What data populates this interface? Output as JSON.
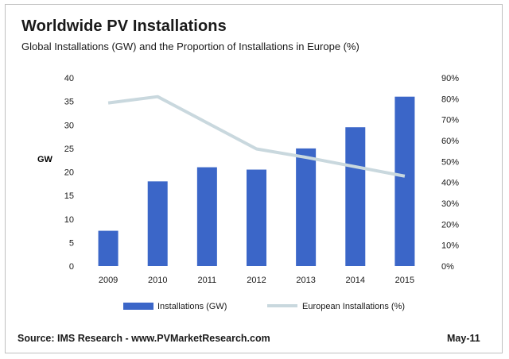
{
  "header": {
    "title": "Worldwide PV Installations",
    "subtitle": "Global Installations (GW) and the Proportion of Installations in Europe (%)"
  },
  "footer": {
    "source": "Source: IMS Research - www.PVMarketResearch.com",
    "date": "May-11"
  },
  "colors": {
    "bar": "#3B66C8",
    "line": "#C9D8DE",
    "axis_text": "#1a1a1a"
  },
  "chart_data": {
    "type": "bar",
    "title": "Worldwide PV Installations",
    "subtitle": "Global Installations (GW) and the Proportion of Installations in Europe (%)",
    "categories": [
      "2009",
      "2010",
      "2011",
      "2012",
      "2013",
      "2014",
      "2015"
    ],
    "series": [
      {
        "name": "Installations (GW)",
        "type": "bar",
        "axis": "left",
        "values": [
          7.5,
          18,
          21,
          20.5,
          25,
          29.5,
          36
        ]
      },
      {
        "name": "European Installations (%)",
        "type": "line",
        "axis": "right",
        "values": [
          78,
          81,
          null,
          56,
          52,
          null,
          43
        ]
      }
    ],
    "ylabel": "GW",
    "ylim": [
      0,
      40
    ],
    "yticks": [
      "0",
      "5",
      "10",
      "15",
      "20",
      "25",
      "30",
      "35",
      "40"
    ],
    "y2lim": [
      0,
      90
    ],
    "y2ticks": [
      "0%",
      "10%",
      "20%",
      "30%",
      "40%",
      "50%",
      "60%",
      "70%",
      "80%",
      "90%"
    ],
    "legend": [
      "Installations (GW)",
      "European Installations (%)"
    ],
    "legend_position": "bottom",
    "grid": false
  }
}
